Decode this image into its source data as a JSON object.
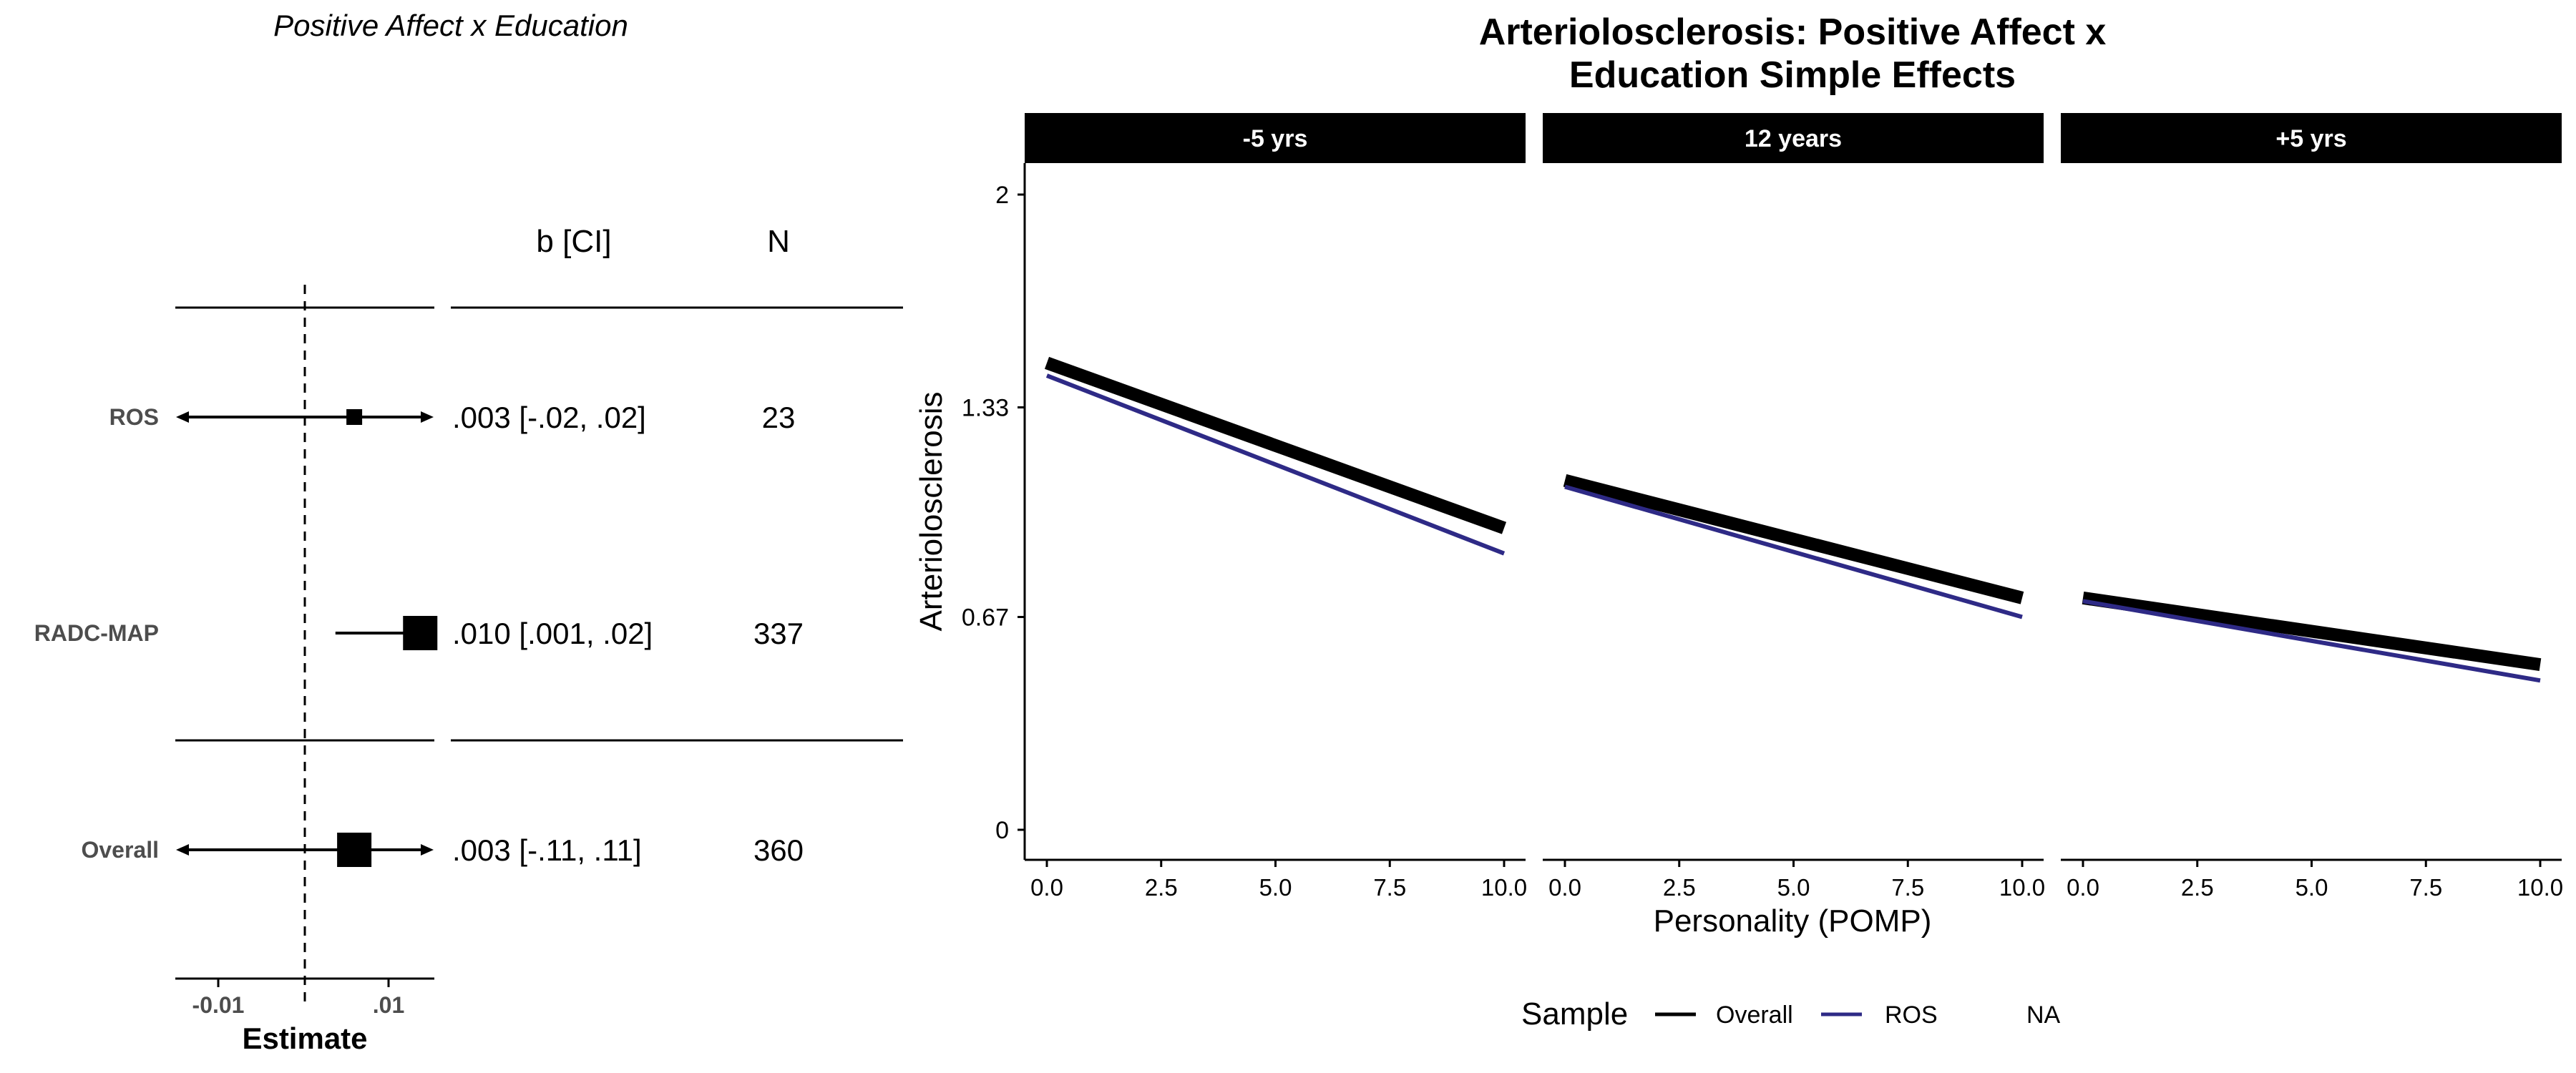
{
  "forest": {
    "title": "Positive Affect x Education",
    "col_b": "b [CI]",
    "col_n": "N",
    "xlabel": "Estimate",
    "xticks": [
      "-0.01",
      ".01"
    ],
    "xlim": [
      -0.016,
      0.0115
    ],
    "rows": [
      {
        "label": "ROS",
        "b_ci": ".003 [-.02, .02]",
        "n": "23",
        "est": 0.003,
        "lo": -0.02,
        "hi": 0.02,
        "weight": "small"
      },
      {
        "label": "RADC-MAP",
        "b_ci": ".010 [.001, .02]",
        "n": "337",
        "est": 0.01,
        "lo": 0.001,
        "hi": 0.02,
        "weight": "large"
      },
      {
        "label": "Overall",
        "b_ci": ".003 [-.11, .11]",
        "n": "360",
        "est": 0.003,
        "lo": -0.11,
        "hi": 0.11,
        "weight": "large"
      }
    ]
  },
  "chart_data": {
    "type": "line",
    "title": "Arteriolosclerosis: Positive Affect x\nEducation Simple Effects",
    "title_lines": [
      "Arteriolosclerosis: Positive Affect x",
      "Education Simple Effects"
    ],
    "xlabel": "Personality (POMP)",
    "ylabel": "Arteriolosclerosis",
    "xlim": [
      0,
      10
    ],
    "ylim": [
      0,
      2
    ],
    "xticks": [
      "0.0",
      "2.5",
      "5.0",
      "7.5",
      "10.0"
    ],
    "yticks": [
      "0",
      "0.67",
      "1.33",
      "2"
    ],
    "legend": {
      "title": "Sample",
      "position": "bottom",
      "entries": [
        "Overall",
        "ROS",
        "NA"
      ]
    },
    "colors": {
      "Overall": "#000000",
      "ROS": "#2e2a86",
      "strip": "#000000"
    },
    "panels": [
      {
        "label": "-5 yrs",
        "series": [
          {
            "name": "Overall",
            "x": [
              0,
              10
            ],
            "y": [
              1.47,
              0.95
            ]
          },
          {
            "name": "ROS",
            "x": [
              0,
              10
            ],
            "y": [
              1.43,
              0.87
            ]
          }
        ]
      },
      {
        "label": "12 years",
        "series": [
          {
            "name": "Overall",
            "x": [
              0,
              10
            ],
            "y": [
              1.1,
              0.73
            ]
          },
          {
            "name": "ROS",
            "x": [
              0,
              10
            ],
            "y": [
              1.08,
              0.67
            ]
          }
        ]
      },
      {
        "label": "+5 yrs",
        "series": [
          {
            "name": "Overall",
            "x": [
              0,
              10
            ],
            "y": [
              0.73,
              0.52
            ]
          },
          {
            "name": "ROS",
            "x": [
              0,
              10
            ],
            "y": [
              0.72,
              0.47
            ]
          }
        ]
      }
    ]
  }
}
